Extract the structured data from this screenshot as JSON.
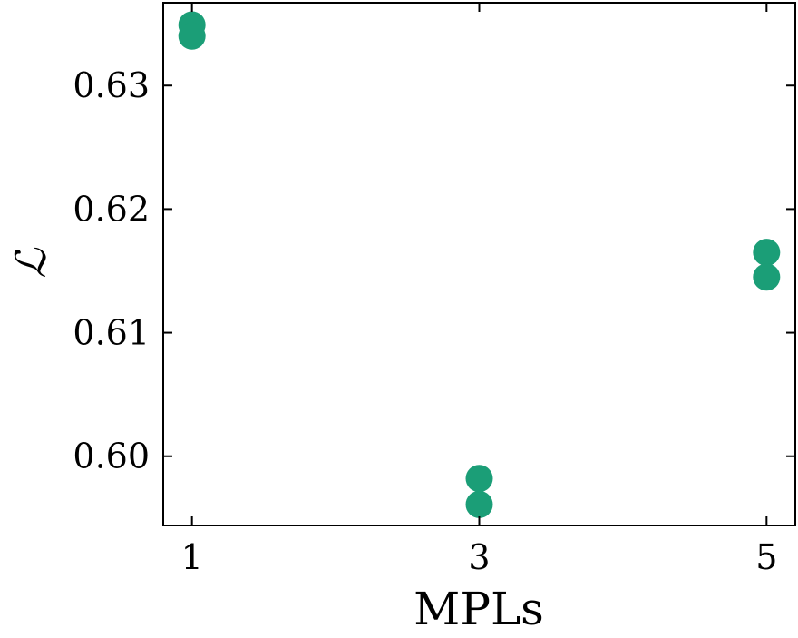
{
  "chart_data": {
    "type": "scatter",
    "xlabel": "MPLs",
    "ylabel": "ℒ",
    "x_ticks": [
      1,
      3,
      5
    ],
    "x_tick_labels": [
      "1",
      "3",
      "5"
    ],
    "y_ticks": [
      0.6,
      0.61,
      0.62,
      0.63
    ],
    "y_tick_labels": [
      "0.60",
      "0.61",
      "0.62",
      "0.63"
    ],
    "xlim": [
      0.8,
      5.2
    ],
    "ylim": [
      0.5944,
      0.6367
    ],
    "grid": false,
    "series": [
      {
        "color": "#1b9e77",
        "points": [
          {
            "x": 1,
            "y": 0.6349
          },
          {
            "x": 1,
            "y": 0.634
          },
          {
            "x": 3,
            "y": 0.5982
          },
          {
            "x": 3,
            "y": 0.5961
          },
          {
            "x": 5,
            "y": 0.6165
          },
          {
            "x": 5,
            "y": 0.6145
          }
        ]
      }
    ]
  }
}
